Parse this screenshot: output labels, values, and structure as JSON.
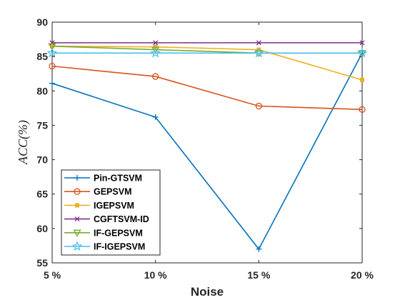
{
  "chart_data": {
    "type": "line",
    "x": [
      "5 %",
      "10 %",
      "15 %",
      "20 %"
    ],
    "xlabel": "Noise",
    "ylabel": "ACC(%)",
    "ylim": [
      55,
      90
    ],
    "yticks": [
      55,
      60,
      65,
      70,
      75,
      80,
      85,
      90
    ],
    "grid": false,
    "legend_position": "bottom-left",
    "series": [
      {
        "name": "Pin-GTSVM",
        "values": [
          81.1,
          76.2,
          57.0,
          85.5
        ],
        "color": "#0072BD",
        "marker": "plus"
      },
      {
        "name": "GEPSVM",
        "values": [
          83.6,
          82.1,
          77.8,
          77.3
        ],
        "color": "#D95319",
        "marker": "circle"
      },
      {
        "name": "IGEPSVM",
        "values": [
          86.5,
          86.4,
          86.0,
          81.6
        ],
        "color": "#EDB120",
        "marker": "square"
      },
      {
        "name": "CGFTSVM-ID",
        "values": [
          87.0,
          87.0,
          87.0,
          87.0
        ],
        "color": "#7E2F8E",
        "marker": "x"
      },
      {
        "name": "IF-GEPSVM",
        "values": [
          86.5,
          86.0,
          85.5,
          85.5
        ],
        "color": "#77AC30",
        "marker": "triangle-down"
      },
      {
        "name": "IF-IGEPSVM",
        "values": [
          85.5,
          85.5,
          85.5,
          85.5
        ],
        "color": "#4DBEEE",
        "marker": "star"
      }
    ]
  }
}
